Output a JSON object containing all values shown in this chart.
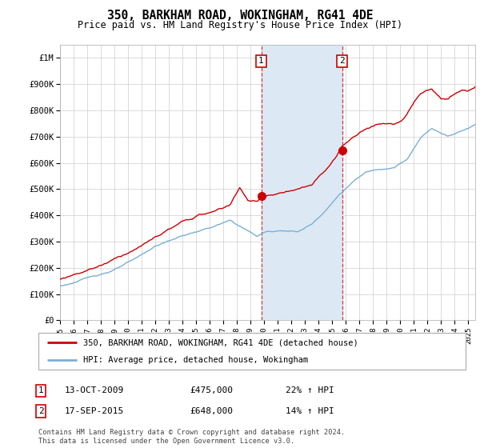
{
  "title": "350, BARKHAM ROAD, WOKINGHAM, RG41 4DE",
  "subtitle": "Price paid vs. HM Land Registry's House Price Index (HPI)",
  "ylabel_ticks": [
    "£0",
    "£100K",
    "£200K",
    "£300K",
    "£400K",
    "£500K",
    "£600K",
    "£700K",
    "£800K",
    "£900K",
    "£1M"
  ],
  "ytick_values": [
    0,
    100000,
    200000,
    300000,
    400000,
    500000,
    600000,
    700000,
    800000,
    900000,
    1000000
  ],
  "ylim": [
    0,
    1050000
  ],
  "xlim_start": 1995.0,
  "xlim_end": 2025.5,
  "shade_x1": 2009.78,
  "shade_x2": 2015.72,
  "marker1_x": 2009.78,
  "marker1_y": 475000,
  "marker2_x": 2015.72,
  "marker2_y": 648000,
  "legend_line1": "350, BARKHAM ROAD, WOKINGHAM, RG41 4DE (detached house)",
  "legend_line2": "HPI: Average price, detached house, Wokingham",
  "ann1_date": "13-OCT-2009",
  "ann1_price": "£475,000",
  "ann1_hpi": "22% ↑ HPI",
  "ann2_date": "17-SEP-2015",
  "ann2_price": "£648,000",
  "ann2_hpi": "14% ↑ HPI",
  "footnote": "Contains HM Land Registry data © Crown copyright and database right 2024.\nThis data is licensed under the Open Government Licence v3.0.",
  "price_color": "#cc0000",
  "hpi_color": "#7bafd4",
  "shade_color": "#dce9f5",
  "vline_color": "#cc0000",
  "grid_color": "#cccccc",
  "background_color": "#ffffff",
  "xtick_years": [
    1995,
    1996,
    1997,
    1998,
    1999,
    2000,
    2001,
    2002,
    2003,
    2004,
    2005,
    2006,
    2007,
    2008,
    2009,
    2010,
    2011,
    2012,
    2013,
    2014,
    2015,
    2016,
    2017,
    2018,
    2019,
    2020,
    2021,
    2022,
    2023,
    2024,
    2025
  ]
}
